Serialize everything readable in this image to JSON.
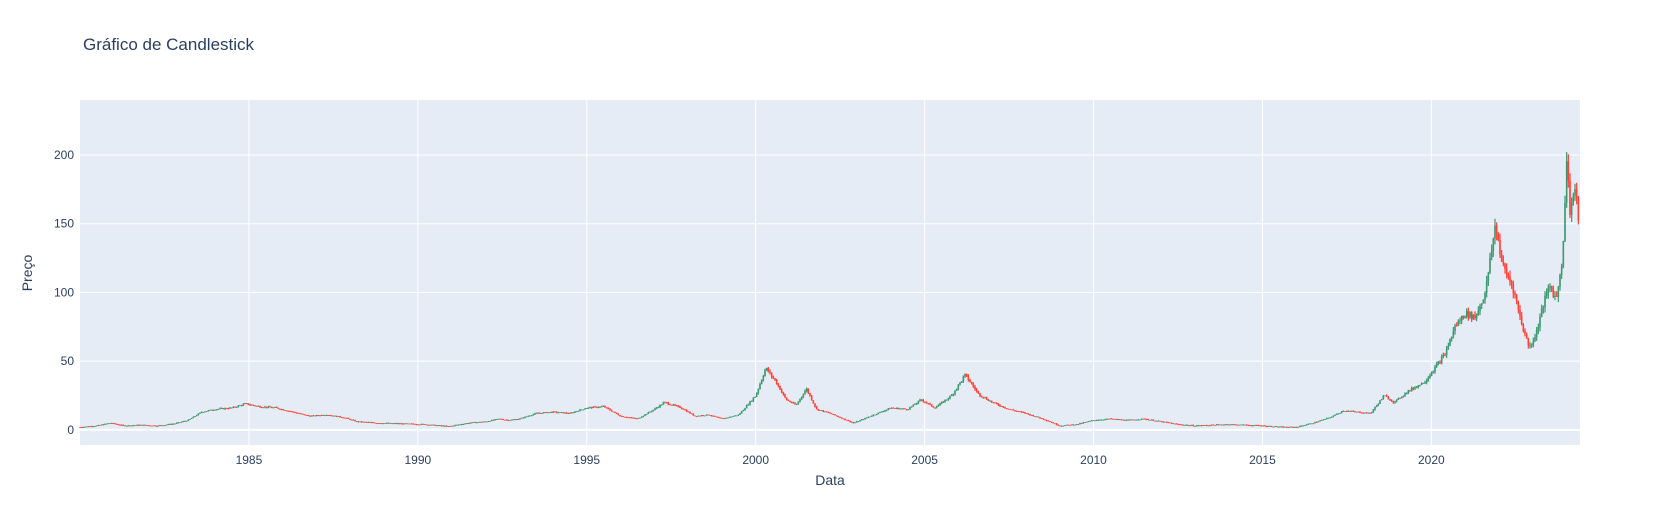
{
  "chart_data": {
    "type": "candlestick",
    "title": "Gráfico de Candlestick",
    "xlabel": "Data",
    "ylabel": "Preço",
    "xlim": [
      1980.0,
      2024.4
    ],
    "ylim": [
      -11,
      240
    ],
    "x_ticks": [
      {
        "value": 1985,
        "label": "1985"
      },
      {
        "value": 1990,
        "label": "1990"
      },
      {
        "value": 1995,
        "label": "1995"
      },
      {
        "value": 2000,
        "label": "2000"
      },
      {
        "value": 2005,
        "label": "2005"
      },
      {
        "value": 2010,
        "label": "2010"
      },
      {
        "value": 2015,
        "label": "2015"
      },
      {
        "value": 2020,
        "label": "2020"
      }
    ],
    "y_ticks": [
      {
        "value": 0,
        "label": "0"
      },
      {
        "value": 50,
        "label": "50"
      },
      {
        "value": 100,
        "label": "100"
      },
      {
        "value": 150,
        "label": "150"
      },
      {
        "value": 200,
        "label": "200"
      }
    ],
    "grid": true,
    "colors": {
      "increasing": "#3d9970",
      "decreasing": "#ff4136",
      "plot_bg": "#e5ecf6",
      "grid": "#ffffff",
      "text": "#2a3f5f"
    },
    "price_path": [
      [
        1980.0,
        2
      ],
      [
        1980.5,
        3
      ],
      [
        1980.9,
        5
      ],
      [
        1981.3,
        3
      ],
      [
        1981.8,
        3.5
      ],
      [
        1982.3,
        3
      ],
      [
        1982.8,
        4.5
      ],
      [
        1983.2,
        7
      ],
      [
        1983.6,
        13
      ],
      [
        1984.0,
        15
      ],
      [
        1984.5,
        16
      ],
      [
        1984.9,
        19
      ],
      [
        1985.3,
        17
      ],
      [
        1985.8,
        16
      ],
      [
        1986.3,
        13
      ],
      [
        1986.8,
        10
      ],
      [
        1987.3,
        11
      ],
      [
        1987.8,
        9
      ],
      [
        1988.2,
        6
      ],
      [
        1988.8,
        5
      ],
      [
        1989.5,
        4.5
      ],
      [
        1990.2,
        4
      ],
      [
        1990.9,
        2.5
      ],
      [
        1991.5,
        5
      ],
      [
        1992.0,
        6
      ],
      [
        1992.4,
        8
      ],
      [
        1992.7,
        7
      ],
      [
        1993.0,
        8
      ],
      [
        1993.5,
        12
      ],
      [
        1994.0,
        13
      ],
      [
        1994.5,
        12
      ],
      [
        1995.0,
        16
      ],
      [
        1995.5,
        17
      ],
      [
        1996.0,
        10
      ],
      [
        1996.5,
        8
      ],
      [
        1997.0,
        15
      ],
      [
        1997.3,
        20
      ],
      [
        1997.8,
        16
      ],
      [
        1998.2,
        10
      ],
      [
        1998.6,
        11
      ],
      [
        1999.0,
        8
      ],
      [
        1999.5,
        11
      ],
      [
        2000.0,
        25
      ],
      [
        2000.3,
        45
      ],
      [
        2000.6,
        35
      ],
      [
        2000.9,
        22
      ],
      [
        2001.2,
        18
      ],
      [
        2001.5,
        30
      ],
      [
        2001.8,
        15
      ],
      [
        2002.2,
        12
      ],
      [
        2002.6,
        8
      ],
      [
        2002.9,
        5
      ],
      [
        2003.2,
        8
      ],
      [
        2003.6,
        12
      ],
      [
        2004.0,
        16
      ],
      [
        2004.5,
        15
      ],
      [
        2004.9,
        22
      ],
      [
        2005.3,
        16
      ],
      [
        2005.8,
        25
      ],
      [
        2006.2,
        40
      ],
      [
        2006.6,
        26
      ],
      [
        2007.0,
        20
      ],
      [
        2007.5,
        15
      ],
      [
        2008.0,
        12
      ],
      [
        2008.5,
        8
      ],
      [
        2009.0,
        3
      ],
      [
        2009.5,
        4
      ],
      [
        2010.0,
        7
      ],
      [
        2010.5,
        8
      ],
      [
        2011.0,
        7
      ],
      [
        2011.5,
        8
      ],
      [
        2012.0,
        6
      ],
      [
        2012.5,
        4
      ],
      [
        2013.0,
        3
      ],
      [
        2014.0,
        4
      ],
      [
        2015.0,
        3
      ],
      [
        2015.6,
        2
      ],
      [
        2016.0,
        2
      ],
      [
        2016.5,
        5
      ],
      [
        2017.0,
        9
      ],
      [
        2017.4,
        14
      ],
      [
        2017.8,
        13
      ],
      [
        2018.2,
        12
      ],
      [
        2018.6,
        25
      ],
      [
        2018.9,
        20
      ],
      [
        2019.3,
        28
      ],
      [
        2019.8,
        35
      ],
      [
        2020.1,
        45
      ],
      [
        2020.4,
        55
      ],
      [
        2020.7,
        75
      ],
      [
        2021.0,
        85
      ],
      [
        2021.3,
        82
      ],
      [
        2021.6,
        100
      ],
      [
        2021.9,
        150
      ],
      [
        2022.1,
        120
      ],
      [
        2022.4,
        105
      ],
      [
        2022.7,
        75
      ],
      [
        2022.9,
        60
      ],
      [
        2023.1,
        70
      ],
      [
        2023.3,
        90
      ],
      [
        2023.5,
        105
      ],
      [
        2023.7,
        95
      ],
      [
        2023.9,
        130
      ],
      [
        2024.0,
        200
      ],
      [
        2024.1,
        160
      ],
      [
        2024.25,
        175
      ],
      [
        2024.4,
        145
      ]
    ]
  }
}
